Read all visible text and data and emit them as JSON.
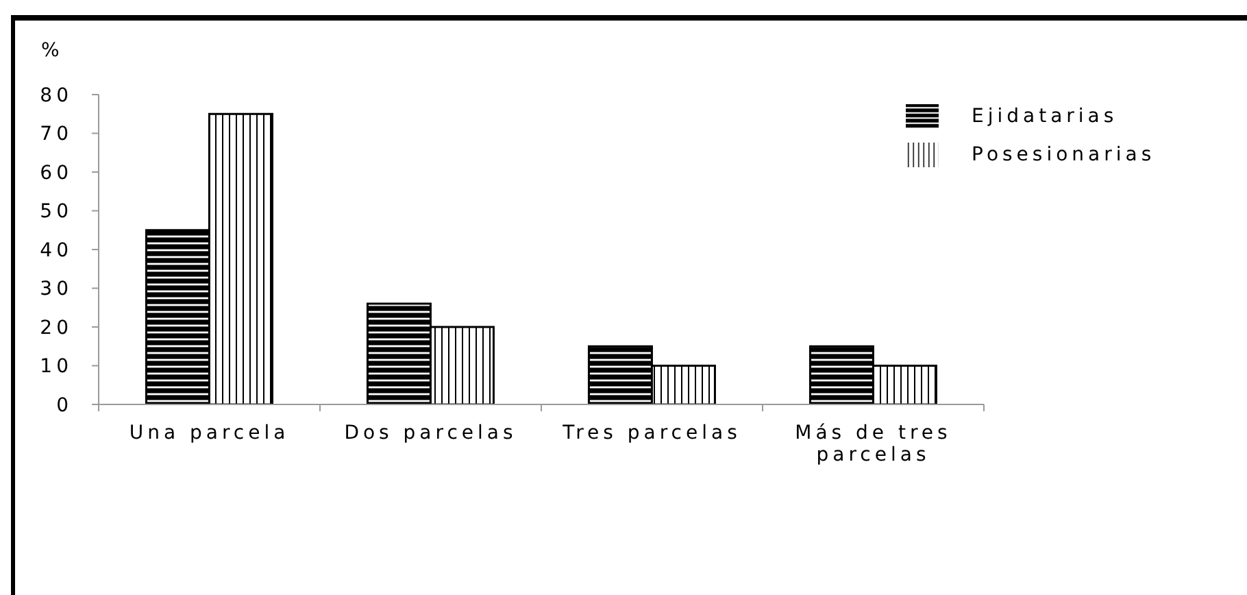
{
  "chart_data": {
    "type": "bar",
    "ylabel": "%",
    "categories": [
      "Una parcela",
      "Dos parcelas",
      "Tres parcelas",
      "Más de tres parcelas"
    ],
    "series": [
      {
        "name": "Ejidatarias",
        "color": "#000000",
        "values": [
          45,
          26,
          15,
          15
        ]
      },
      {
        "name": "Posesionarias",
        "color": "#000000",
        "values": [
          75,
          20,
          10,
          10
        ]
      }
    ],
    "ylim": [
      0,
      80
    ],
    "yticks": [
      0,
      10,
      20,
      30,
      40,
      50,
      60,
      70,
      80
    ],
    "legend": "top right"
  }
}
